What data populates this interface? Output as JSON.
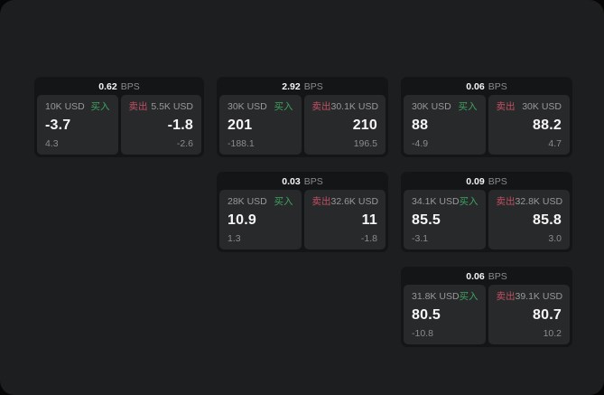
{
  "labels": {
    "buy": "买入",
    "sell": "卖出",
    "bps": "BPS"
  },
  "colors": {
    "buy_green": "#3da35f",
    "sell_red": "#c24f63",
    "panel_bg": "#1d1e20",
    "card_bg": "#141516",
    "pane_bg": "#28292b"
  },
  "cards": [
    {
      "bps": "0.62",
      "buy": {
        "amount": "10K USD",
        "price": "-3.7",
        "delta": "4.3"
      },
      "sell": {
        "amount": "5.5K USD",
        "price": "-1.8",
        "delta": "-2.6"
      }
    },
    {
      "bps": "2.92",
      "buy": {
        "amount": "30K USD",
        "price": "201",
        "delta": "-188.1"
      },
      "sell": {
        "amount": "30.1K USD",
        "price": "210",
        "delta": "196.5"
      }
    },
    {
      "bps": "0.06",
      "buy": {
        "amount": "30K USD",
        "price": "88",
        "delta": "-4.9"
      },
      "sell": {
        "amount": "30K USD",
        "price": "88.2",
        "delta": "4.7"
      }
    },
    {
      "bps": "0.03",
      "buy": {
        "amount": "28K USD",
        "price": "10.9",
        "delta": "1.3"
      },
      "sell": {
        "amount": "32.6K USD",
        "price": "11",
        "delta": "-1.8"
      }
    },
    {
      "bps": "0.09",
      "buy": {
        "amount": "34.1K USD",
        "price": "85.5",
        "delta": "-3.1"
      },
      "sell": {
        "amount": "32.8K USD",
        "price": "85.8",
        "delta": "3.0"
      }
    },
    {
      "bps": "0.06",
      "buy": {
        "amount": "31.8K USD",
        "price": "80.5",
        "delta": "-10.8"
      },
      "sell": {
        "amount": "39.1K USD",
        "price": "80.7",
        "delta": "10.2"
      }
    }
  ]
}
